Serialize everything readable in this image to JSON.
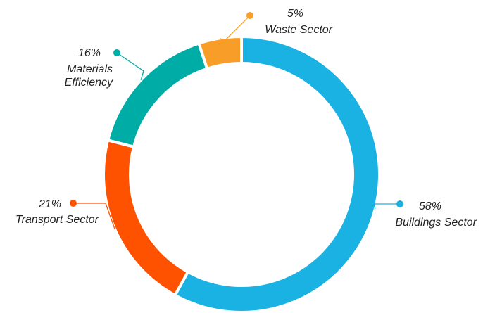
{
  "chart_data": {
    "type": "pie",
    "donut": true,
    "title": "",
    "start_angle_deg": 0,
    "direction": "clockwise",
    "slices": [
      {
        "name": "Buildings Sector",
        "value": 58,
        "label": "58%",
        "color": "#1AB2E2"
      },
      {
        "name": "Transport Sector",
        "value": 21,
        "label": "21%",
        "color": "#FF5200"
      },
      {
        "name": "Materials Efficiency",
        "value": 16,
        "label": "16%",
        "color": "#00ACA6"
      },
      {
        "name": "Waste Sector",
        "value": 5,
        "label": "5%",
        "color": "#F89E28"
      }
    ]
  }
}
